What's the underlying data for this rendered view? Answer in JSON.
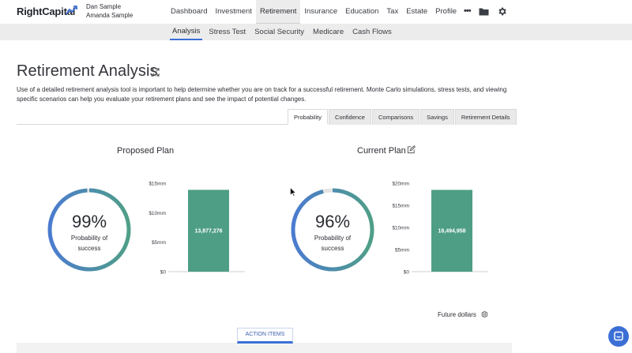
{
  "header": {
    "logo_text": "RightCapital",
    "users": [
      "Dan Sample",
      "Amanda Sample"
    ],
    "nav": [
      "Dashboard",
      "Investment",
      "Retirement",
      "Insurance",
      "Education",
      "Tax",
      "Estate",
      "Profile"
    ],
    "active_nav": "Retirement",
    "icons": [
      "more-icon",
      "folder-icon",
      "gear-icon"
    ]
  },
  "subnav": {
    "items": [
      "Analysis",
      "Stress Test",
      "Social Security",
      "Medicare",
      "Cash Flows"
    ],
    "active": "Analysis"
  },
  "page": {
    "title": "Retirement Analysis",
    "description": "Use of a detailed retirement analysis tool is important to help determine whether you are on track for a successful retirement. Monte Carlo simulations, stress tests, and viewing specific scenarios can help you evaluate your retirement plans and see the impact of potential changes."
  },
  "tabs": {
    "items": [
      "Probability",
      "Confidence",
      "Comparisons",
      "Savings",
      "Retirement Details"
    ],
    "active": "Probability"
  },
  "plans": [
    {
      "title": "Proposed Plan",
      "percent": "99%",
      "label_line1": "Probability of",
      "label_line2": "success",
      "probability": 0.99
    },
    {
      "title": "Current Plan",
      "percent": "96%",
      "label_line1": "Probability of",
      "label_line2": "success",
      "probability": 0.96
    }
  ],
  "chart_data": [
    {
      "type": "bar",
      "categories": [
        ""
      ],
      "values": [
        13877276
      ],
      "data_labels": [
        "13,877,276"
      ],
      "yticks": [
        "$0",
        "$5mm",
        "$10mm",
        "$15mm"
      ],
      "ylim": [
        0,
        15000000
      ]
    },
    {
      "type": "bar",
      "categories": [
        ""
      ],
      "values": [
        18494958
      ],
      "data_labels": [
        "18,494,958"
      ],
      "yticks": [
        "$0",
        "$5mm",
        "$10mm",
        "$15mm",
        "$20mm"
      ],
      "ylim": [
        0,
        20000000
      ]
    }
  ],
  "footer": {
    "dollars_label": "Future dollars",
    "action_items": "ACTION ITEMS"
  },
  "colors": {
    "accent": "#3b6fd6",
    "bar": "#4e9e85",
    "gauge_start": "#4b7bd0",
    "gauge_end": "#4f9f87",
    "gauge_track": "#e4e4e4"
  }
}
